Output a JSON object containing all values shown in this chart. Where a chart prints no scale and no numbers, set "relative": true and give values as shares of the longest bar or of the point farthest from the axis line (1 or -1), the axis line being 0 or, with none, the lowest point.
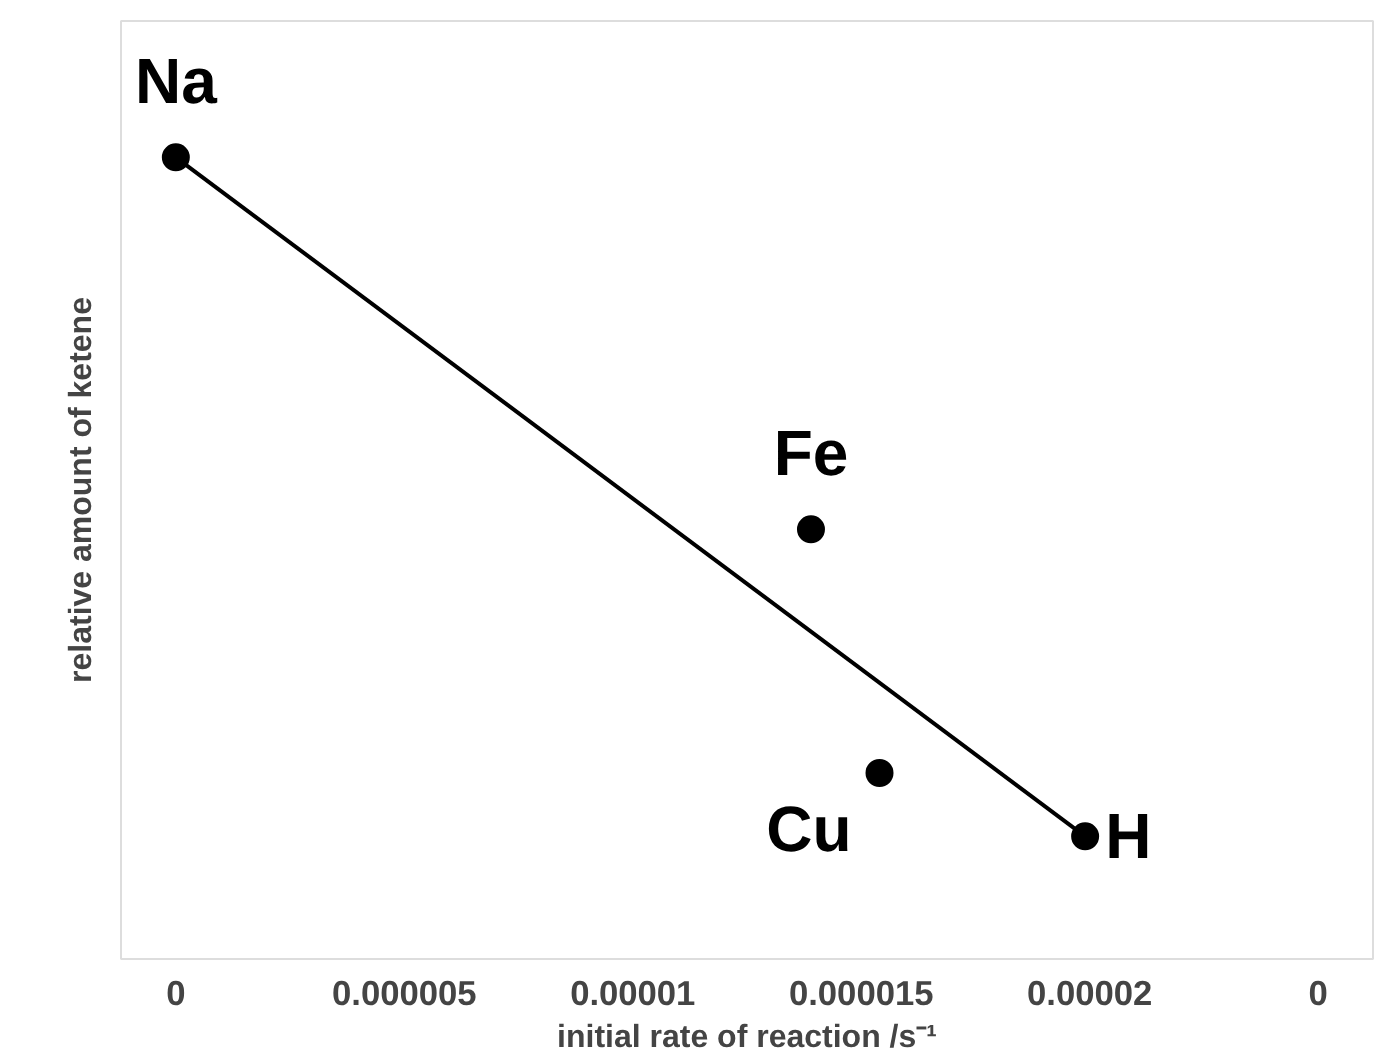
{
  "chart_data": {
    "type": "scatter",
    "relative": true,
    "xlabel": "initial rate of reaction /s⁻¹",
    "ylabel": "relative amount of ketene",
    "xlim": [
      -1.2e-06,
      2.62e-05
    ],
    "xticks": [
      0,
      {
        "value": 5e-06,
        "label": "0.000005"
      },
      {
        "value": 1e-05,
        "label": "0.00001"
      },
      {
        "value": 1.5e-05,
        "label": "0.000015"
      },
      {
        "value": 2e-05,
        "label": "0.00002"
      },
      {
        "value": 2.5e-05,
        "label": "0"
      }
    ],
    "tick_labels": "x",
    "grid": false,
    "marker": "circle",
    "series": [
      {
        "color": "#000000",
        "x": [
          0,
          1.39e-05,
          1.54e-05,
          1.99e-05
        ],
        "values": [
          1.0,
          0.536,
          0.232,
          0.153
        ]
      },
      {
        "type": "line",
        "marker": "none",
        "color": "#000000",
        "x": [
          0,
          1.99e-05
        ],
        "values": [
          1.0,
          0.153
        ]
      }
    ],
    "annotations": [
      {
        "text": "Na",
        "x": 0,
        "y": 1.0
      },
      {
        "text": "Fe",
        "x": 1.39e-05,
        "y": 0.536
      },
      {
        "text": "Cu",
        "x": 1.54e-05,
        "y": 0.232
      },
      {
        "text": "H",
        "x": 1.99e-05,
        "y": 0.153
      }
    ]
  }
}
